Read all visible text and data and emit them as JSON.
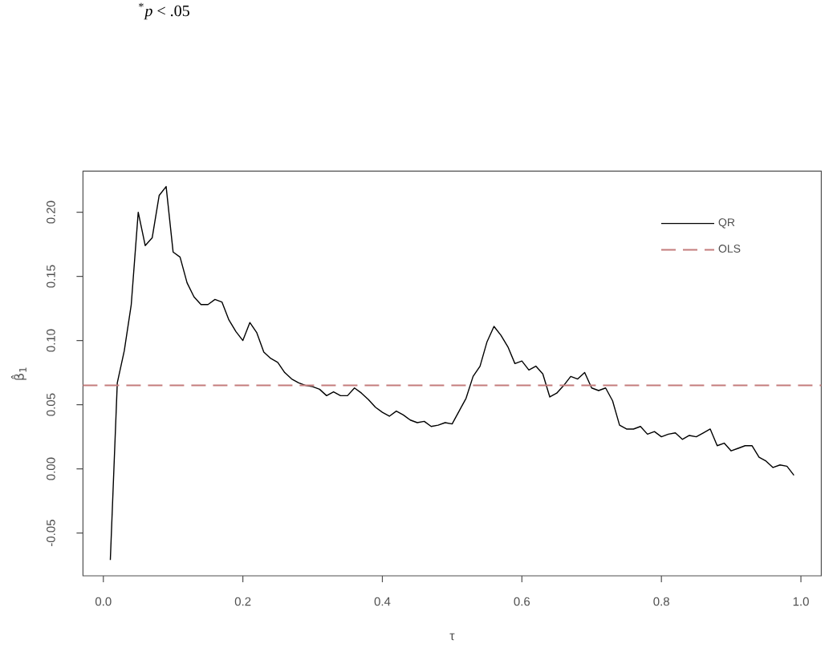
{
  "chart_data": {
    "type": "line",
    "xlabel": "τ",
    "ylabel": "β̂$_{1}$",
    "annotations": [
      "$^{*}$*p* < .05"
    ],
    "x": [
      0.01,
      0.02,
      0.03,
      0.04,
      0.05,
      0.06,
      0.07,
      0.08,
      0.09,
      0.1,
      0.11,
      0.12,
      0.13,
      0.14,
      0.15,
      0.16,
      0.17,
      0.18,
      0.19,
      0.2,
      0.21,
      0.22,
      0.23,
      0.24,
      0.25,
      0.26,
      0.27,
      0.28,
      0.29,
      0.3,
      0.31,
      0.32,
      0.33,
      0.34,
      0.35,
      0.36,
      0.37,
      0.38,
      0.39,
      0.4,
      0.41,
      0.42,
      0.43,
      0.44,
      0.45,
      0.46,
      0.47,
      0.48,
      0.49,
      0.5,
      0.51,
      0.52,
      0.53,
      0.54,
      0.55,
      0.56,
      0.57,
      0.58,
      0.59,
      0.6,
      0.61,
      0.62,
      0.63,
      0.64,
      0.65,
      0.66,
      0.67,
      0.68,
      0.69,
      0.7,
      0.71,
      0.72,
      0.73,
      0.74,
      0.75,
      0.76,
      0.77,
      0.78,
      0.79,
      0.8,
      0.81,
      0.82,
      0.83,
      0.84,
      0.85,
      0.86,
      0.87,
      0.88,
      0.89,
      0.9,
      0.91,
      0.92,
      0.93,
      0.94,
      0.95,
      0.96,
      0.97,
      0.98,
      0.99
    ],
    "series": [
      {
        "name": "QR",
        "color": "#000000",
        "values": [
          -0.071,
          0.067,
          0.092,
          0.128,
          0.2,
          0.174,
          0.18,
          0.213,
          0.22,
          0.169,
          0.165,
          0.145,
          0.134,
          0.128,
          0.128,
          0.132,
          0.13,
          0.116,
          0.107,
          0.1,
          0.114,
          0.106,
          0.091,
          0.086,
          0.083,
          0.075,
          0.07,
          0.067,
          0.065,
          0.064,
          0.062,
          0.057,
          0.06,
          0.057,
          0.057,
          0.063,
          0.059,
          0.054,
          0.048,
          0.044,
          0.041,
          0.045,
          0.042,
          0.038,
          0.036,
          0.037,
          0.033,
          0.034,
          0.036,
          0.035,
          0.045,
          0.055,
          0.072,
          0.08,
          0.099,
          0.111,
          0.104,
          0.095,
          0.082,
          0.084,
          0.077,
          0.08,
          0.074,
          0.056,
          0.059,
          0.065,
          0.072,
          0.07,
          0.075,
          0.063,
          0.061,
          0.063,
          0.053,
          0.034,
          0.031,
          0.031,
          0.033,
          0.027,
          0.029,
          0.025,
          0.027,
          0.028,
          0.023,
          0.026,
          0.025,
          0.028,
          0.031,
          0.018,
          0.02,
          0.014,
          0.016,
          0.018,
          0.018,
          0.009,
          0.006,
          0.001,
          0.003,
          0.002,
          -0.005
        ]
      }
    ],
    "ref_lines": [
      {
        "axis": "y",
        "value": 0.065,
        "label": "OLS",
        "color": "#c47c7c",
        "line_style": "dashed"
      }
    ],
    "xlim": [
      -0.0292,
      1.0292
    ],
    "ylim": [
      -0.0834,
      0.232
    ],
    "xticks": [
      {
        "value": 0,
        "label": "0.0"
      },
      0.2,
      0.4,
      0.6,
      0.8,
      {
        "value": 1,
        "label": "1.0"
      }
    ],
    "yticks": [
      -0.05,
      {
        "value": 0,
        "label": "0.00"
      },
      0.05,
      {
        "value": 0.1,
        "label": "0.10"
      },
      0.15,
      {
        "value": 0.2,
        "label": "0.20"
      }
    ],
    "legend": "top right"
  }
}
